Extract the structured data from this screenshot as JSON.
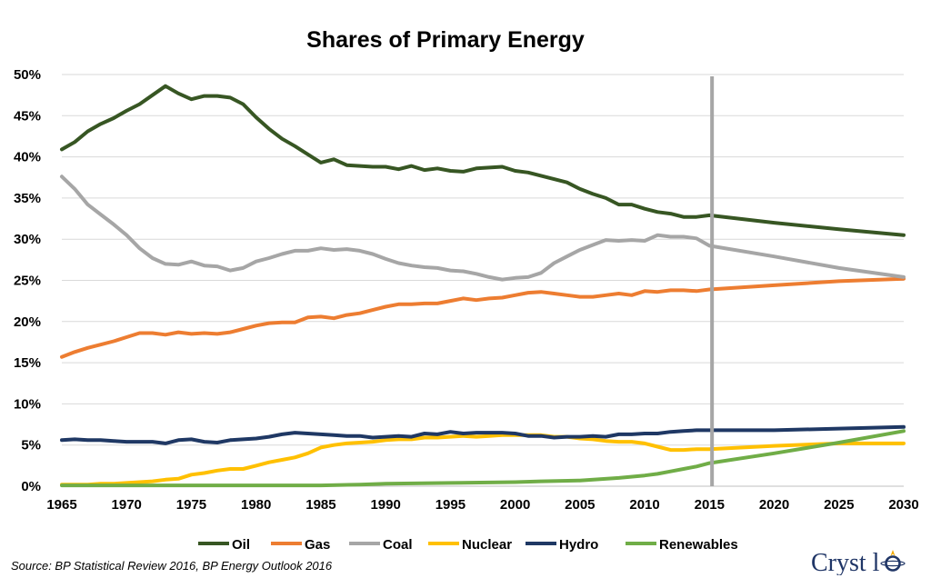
{
  "chart_data": {
    "type": "line",
    "title": "Shares of Primary Energy",
    "xlabel": "",
    "ylabel": "",
    "xlim": [
      1965,
      2030
    ],
    "ylim": [
      0,
      0.5
    ],
    "x_ticks": [
      "1965",
      "1970",
      "1975",
      "1980",
      "1985",
      "1990",
      "1995",
      "2000",
      "2005",
      "2010",
      "2015",
      "2020",
      "2025",
      "2030"
    ],
    "y_ticks": [
      "0%",
      "5%",
      "10%",
      "15%",
      "20%",
      "25%",
      "30%",
      "35%",
      "40%",
      "45%",
      "50%"
    ],
    "grid": "horizontal",
    "legend_position": "bottom",
    "marker_line": {
      "x": 2015.2,
      "color": "#a6a6a6"
    },
    "series": [
      {
        "name": "Oil",
        "color": "#375623",
        "x": [
          1965,
          1966,
          1967,
          1968,
          1969,
          1970,
          1971,
          1972,
          1973,
          1974,
          1975,
          1976,
          1977,
          1978,
          1979,
          1980,
          1981,
          1982,
          1983,
          1984,
          1985,
          1986,
          1987,
          1988,
          1989,
          1990,
          1991,
          1992,
          1993,
          1994,
          1995,
          1996,
          1997,
          1998,
          1999,
          2000,
          2001,
          2002,
          2003,
          2004,
          2005,
          2006,
          2007,
          2008,
          2009,
          2010,
          2011,
          2012,
          2013,
          2014,
          2015,
          2020,
          2025,
          2030
        ],
        "y": [
          0.409,
          0.418,
          0.431,
          0.44,
          0.447,
          0.456,
          0.464,
          0.475,
          0.486,
          0.477,
          0.47,
          0.474,
          0.474,
          0.472,
          0.464,
          0.448,
          0.434,
          0.422,
          0.413,
          0.403,
          0.393,
          0.397,
          0.39,
          0.389,
          0.388,
          0.388,
          0.385,
          0.389,
          0.384,
          0.386,
          0.383,
          0.382,
          0.386,
          0.387,
          0.388,
          0.383,
          0.381,
          0.377,
          0.373,
          0.369,
          0.361,
          0.355,
          0.35,
          0.342,
          0.342,
          0.337,
          0.333,
          0.331,
          0.327,
          0.327,
          0.329,
          0.32,
          0.312,
          0.305
        ]
      },
      {
        "name": "Gas",
        "color": "#ed7d31",
        "x": [
          1965,
          1966,
          1967,
          1968,
          1969,
          1970,
          1971,
          1972,
          1973,
          1974,
          1975,
          1976,
          1977,
          1978,
          1979,
          1980,
          1981,
          1982,
          1983,
          1984,
          1985,
          1986,
          1987,
          1988,
          1989,
          1990,
          1991,
          1992,
          1993,
          1994,
          1995,
          1996,
          1997,
          1998,
          1999,
          2000,
          2001,
          2002,
          2003,
          2004,
          2005,
          2006,
          2007,
          2008,
          2009,
          2010,
          2011,
          2012,
          2013,
          2014,
          2015,
          2020,
          2025,
          2030
        ],
        "y": [
          0.157,
          0.163,
          0.168,
          0.172,
          0.176,
          0.181,
          0.186,
          0.186,
          0.184,
          0.187,
          0.185,
          0.186,
          0.185,
          0.187,
          0.191,
          0.195,
          0.198,
          0.199,
          0.199,
          0.205,
          0.206,
          0.204,
          0.208,
          0.21,
          0.214,
          0.218,
          0.221,
          0.221,
          0.222,
          0.222,
          0.225,
          0.228,
          0.226,
          0.228,
          0.229,
          0.232,
          0.235,
          0.236,
          0.234,
          0.232,
          0.23,
          0.23,
          0.232,
          0.234,
          0.232,
          0.237,
          0.236,
          0.238,
          0.238,
          0.237,
          0.239,
          0.244,
          0.249,
          0.252
        ]
      },
      {
        "name": "Coal",
        "color": "#a6a6a6",
        "x": [
          1965,
          1966,
          1967,
          1968,
          1969,
          1970,
          1971,
          1972,
          1973,
          1974,
          1975,
          1976,
          1977,
          1978,
          1979,
          1980,
          1981,
          1982,
          1983,
          1984,
          1985,
          1986,
          1987,
          1988,
          1989,
          1990,
          1991,
          1992,
          1993,
          1994,
          1995,
          1996,
          1997,
          1998,
          1999,
          2000,
          2001,
          2002,
          2003,
          2004,
          2005,
          2006,
          2007,
          2008,
          2009,
          2010,
          2011,
          2012,
          2013,
          2014,
          2015,
          2020,
          2025,
          2030
        ],
        "y": [
          0.376,
          0.361,
          0.342,
          0.33,
          0.318,
          0.305,
          0.289,
          0.277,
          0.27,
          0.269,
          0.273,
          0.268,
          0.267,
          0.262,
          0.265,
          0.273,
          0.277,
          0.282,
          0.286,
          0.286,
          0.289,
          0.287,
          0.288,
          0.286,
          0.282,
          0.276,
          0.271,
          0.268,
          0.266,
          0.265,
          0.262,
          0.261,
          0.258,
          0.254,
          0.251,
          0.253,
          0.254,
          0.259,
          0.271,
          0.279,
          0.287,
          0.293,
          0.299,
          0.298,
          0.299,
          0.298,
          0.305,
          0.303,
          0.303,
          0.301,
          0.292,
          0.279,
          0.265,
          0.254
        ]
      },
      {
        "name": "Nuclear",
        "color": "#ffc000",
        "x": [
          1965,
          1966,
          1967,
          1968,
          1969,
          1970,
          1971,
          1972,
          1973,
          1974,
          1975,
          1976,
          1977,
          1978,
          1979,
          1980,
          1981,
          1982,
          1983,
          1984,
          1985,
          1986,
          1987,
          1988,
          1989,
          1990,
          1991,
          1992,
          1993,
          1994,
          1995,
          1996,
          1997,
          1998,
          1999,
          2000,
          2001,
          2002,
          2003,
          2004,
          2005,
          2006,
          2007,
          2008,
          2009,
          2010,
          2011,
          2012,
          2013,
          2014,
          2015,
          2020,
          2025,
          2030
        ],
        "y": [
          0.002,
          0.002,
          0.002,
          0.003,
          0.003,
          0.004,
          0.005,
          0.006,
          0.008,
          0.009,
          0.014,
          0.016,
          0.019,
          0.021,
          0.021,
          0.025,
          0.029,
          0.032,
          0.035,
          0.04,
          0.047,
          0.05,
          0.052,
          0.053,
          0.054,
          0.056,
          0.057,
          0.057,
          0.059,
          0.059,
          0.06,
          0.061,
          0.06,
          0.061,
          0.062,
          0.062,
          0.062,
          0.062,
          0.06,
          0.06,
          0.058,
          0.057,
          0.055,
          0.054,
          0.054,
          0.052,
          0.048,
          0.044,
          0.044,
          0.045,
          0.045,
          0.049,
          0.052,
          0.052
        ]
      },
      {
        "name": "Hydro",
        "color": "#1f3864",
        "x": [
          1965,
          1966,
          1967,
          1968,
          1969,
          1970,
          1971,
          1972,
          1973,
          1974,
          1975,
          1976,
          1977,
          1978,
          1979,
          1980,
          1981,
          1982,
          1983,
          1984,
          1985,
          1986,
          1987,
          1988,
          1989,
          1990,
          1991,
          1992,
          1993,
          1994,
          1995,
          1996,
          1997,
          1998,
          1999,
          2000,
          2001,
          2002,
          2003,
          2004,
          2005,
          2006,
          2007,
          2008,
          2009,
          2010,
          2011,
          2012,
          2013,
          2014,
          2015,
          2020,
          2025,
          2030
        ],
        "y": [
          0.056,
          0.057,
          0.056,
          0.056,
          0.055,
          0.054,
          0.054,
          0.054,
          0.052,
          0.056,
          0.057,
          0.054,
          0.053,
          0.056,
          0.057,
          0.058,
          0.06,
          0.063,
          0.065,
          0.064,
          0.063,
          0.062,
          0.061,
          0.061,
          0.059,
          0.06,
          0.061,
          0.06,
          0.064,
          0.063,
          0.066,
          0.064,
          0.065,
          0.065,
          0.065,
          0.064,
          0.061,
          0.061,
          0.059,
          0.06,
          0.06,
          0.061,
          0.06,
          0.063,
          0.063,
          0.064,
          0.064,
          0.066,
          0.067,
          0.068,
          0.068,
          0.068,
          0.07,
          0.072
        ]
      },
      {
        "name": "Renewables",
        "color": "#70ad47",
        "x": [
          1965,
          1970,
          1975,
          1980,
          1985,
          1988,
          1990,
          1995,
          2000,
          2002,
          2005,
          2008,
          2010,
          2011,
          2012,
          2013,
          2014,
          2015,
          2020,
          2025,
          2030
        ],
        "y": [
          0.001,
          0.001,
          0.001,
          0.001,
          0.001,
          0.002,
          0.003,
          0.004,
          0.005,
          0.006,
          0.007,
          0.01,
          0.013,
          0.015,
          0.018,
          0.021,
          0.024,
          0.028,
          0.04,
          0.053,
          0.067
        ]
      }
    ],
    "source": "Source: BP Statistical Review 2016, BP Energy Outlook 2016",
    "logo_text": "Cryst  l"
  }
}
